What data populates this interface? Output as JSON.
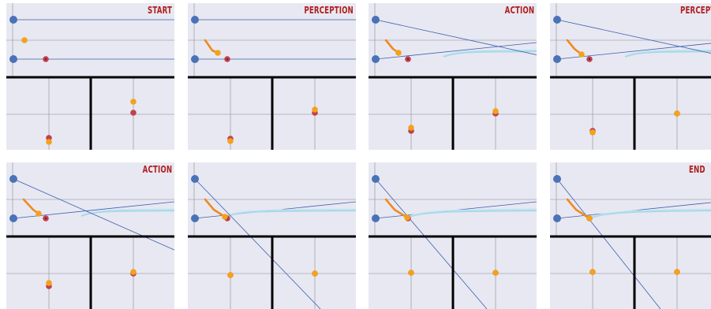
{
  "frames": [
    {
      "label": "START",
      "stage": 0
    },
    {
      "label": "PERCEPTION",
      "stage": 1
    },
    {
      "label": "ACTION",
      "stage": 2
    },
    {
      "label": "PERCEPTION",
      "stage": 3,
      "clipped": true
    },
    {
      "label": "ACTION",
      "stage": 4
    },
    {
      "label": "",
      "stage": 5
    },
    {
      "label": "",
      "stage": 6
    },
    {
      "label": "END",
      "stage": 7,
      "clipped": true
    }
  ],
  "colors": {
    "background": "#e8e8f2",
    "blue_point": "#4a72b6",
    "orange_point": "#f4a21a",
    "red_point": "#c2404e",
    "trail": "#ef8a1f",
    "fit_curve": "#a9d8e8",
    "thin_line": "#3b5fad",
    "axis": "#000000",
    "grid": "#8a8a90",
    "label": "#b01e1e"
  }
}
